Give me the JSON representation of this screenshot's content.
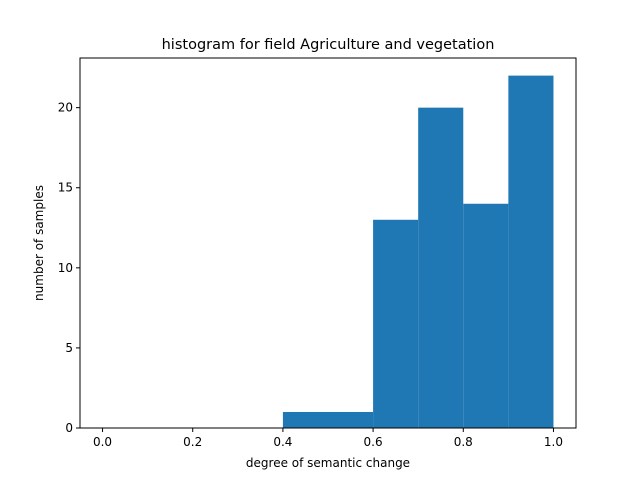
{
  "chart_data": {
    "type": "bar",
    "title": "histogram for field Agriculture and vegetation",
    "xlabel": "degree of semantic change",
    "ylabel": "number of samples",
    "bins": [
      [
        0.0,
        0.1
      ],
      [
        0.1,
        0.2
      ],
      [
        0.2,
        0.3
      ],
      [
        0.3,
        0.4
      ],
      [
        0.4,
        0.5
      ],
      [
        0.5,
        0.6
      ],
      [
        0.6,
        0.7
      ],
      [
        0.7,
        0.8
      ],
      [
        0.8,
        0.9
      ],
      [
        0.9,
        1.0
      ]
    ],
    "values": [
      0,
      0,
      0,
      0,
      1,
      1,
      13,
      20,
      14,
      22
    ],
    "xlim": [
      -0.05,
      1.05
    ],
    "ylim": [
      0,
      23.1
    ],
    "x_ticks": [
      0.0,
      0.2,
      0.4,
      0.6,
      0.8,
      1.0
    ],
    "x_tick_labels": [
      "0.0",
      "0.2",
      "0.4",
      "0.6",
      "0.8",
      "1.0"
    ],
    "y_ticks": [
      0,
      5,
      10,
      15,
      20
    ],
    "y_tick_labels": [
      "0",
      "5",
      "10",
      "15",
      "20"
    ],
    "grid": false,
    "legend": "none",
    "colors": {
      "bar": "#1f77b4",
      "axis": "#000000"
    }
  }
}
